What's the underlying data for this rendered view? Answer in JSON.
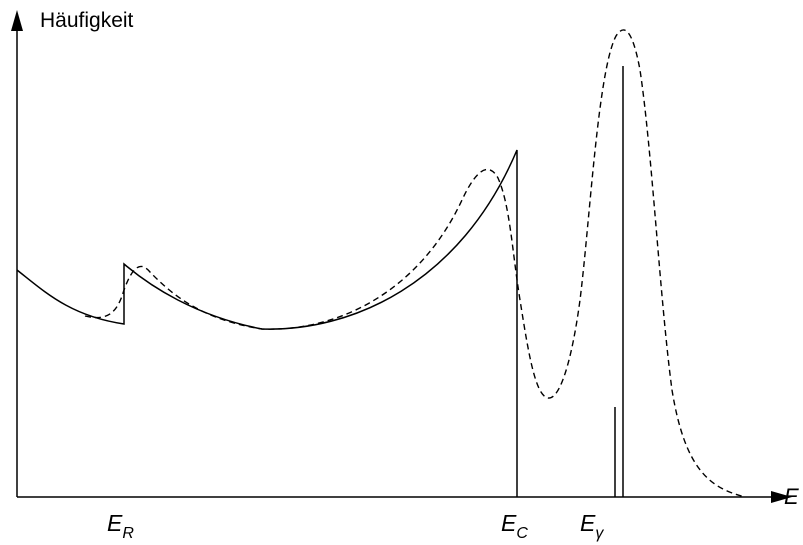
{
  "diagram": {
    "y_axis_label": "Häufigkeit",
    "x_axis_label": "E",
    "markers": [
      {
        "symbol": "E",
        "subscript": "R"
      },
      {
        "symbol": "E",
        "subscript": "C"
      },
      {
        "symbol": "E",
        "subscript": "γ"
      }
    ],
    "curves": [
      {
        "style": "solid",
        "color": "#000000"
      },
      {
        "style": "dashed",
        "color": "#000000"
      }
    ]
  }
}
